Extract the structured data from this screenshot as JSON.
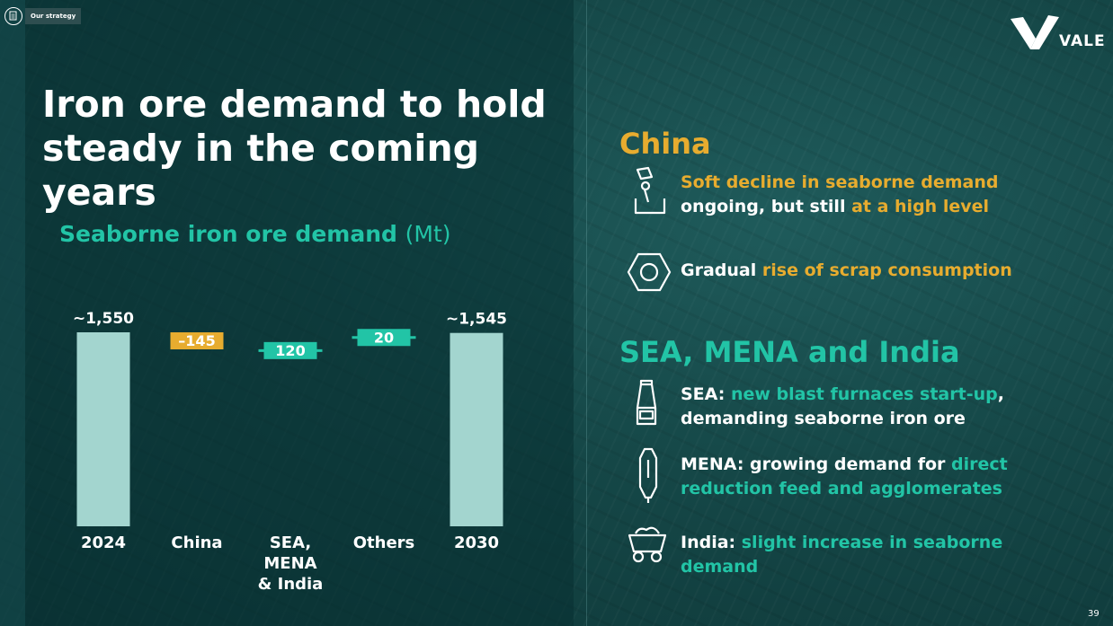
{
  "badge": {
    "label": "Our strategy",
    "icon": "clipboard-icon"
  },
  "logo": {
    "text": "VALE"
  },
  "title_line1": "Iron ore demand to hold",
  "title_line2": "steady in the coming years",
  "chart_title": {
    "main": "Seaborne iron ore demand",
    "unit": "(Mt)"
  },
  "chart_data": {
    "type": "bar",
    "subtype": "waterfall",
    "title": "Seaborne iron ore demand (Mt)",
    "categories": [
      "2024",
      "China",
      "SEA, MENA & India",
      "Others",
      "2030"
    ],
    "category_lines": [
      [
        "2024"
      ],
      [
        "China"
      ],
      [
        "SEA,",
        "MENA",
        "& India"
      ],
      [
        "Others"
      ],
      [
        "2030"
      ]
    ],
    "values": [
      1550,
      -145,
      120,
      20,
      1545
    ],
    "value_labels": [
      "~1,550",
      "–145",
      "120",
      "20",
      "~1,545"
    ],
    "kinds": [
      "total",
      "delta",
      "delta",
      "delta",
      "total"
    ],
    "colors": {
      "total": "#a3d5cf",
      "negative": "#e7ac2f",
      "positive": "#22c4a6"
    }
  },
  "china": {
    "heading": "China",
    "bullet1": {
      "icon": "furnace-ladle-icon",
      "p1": "Soft decline in seaborne demand",
      "p2": " ongoing, but still ",
      "p3": "at a high level"
    },
    "bullet2": {
      "icon": "hex-nut-icon",
      "p1": "Gradual ",
      "p2": "rise of scrap consumption"
    }
  },
  "sea": {
    "heading": "SEA, MENA and India",
    "bullet1": {
      "icon": "blast-furnace-icon",
      "p1": "SEA: ",
      "p2": "new blast furnaces start-up",
      "p3": ", demanding seaborne iron ore"
    },
    "bullet2": {
      "icon": "reduction-tower-icon",
      "p1": "MENA: growing demand for ",
      "p2": "direct reduction feed and agglomerates"
    },
    "bullet3": {
      "icon": "mine-cart-icon",
      "p1": "India: ",
      "p2": "slight increase in seaborne demand"
    }
  },
  "page_number": "39"
}
